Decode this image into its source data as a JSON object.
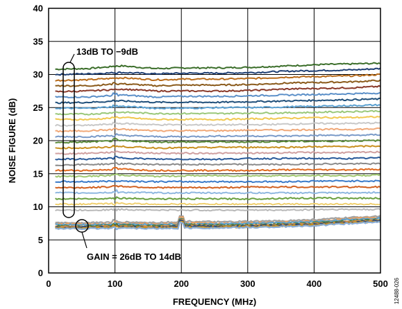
{
  "chart_data": {
    "type": "line",
    "xlabel": "FREQUENCY (MHz)",
    "ylabel": "NOISE FIGURE (dB)",
    "xlim": [
      0,
      500
    ],
    "ylim": [
      0,
      40
    ],
    "xticks": [
      0,
      100,
      200,
      300,
      400,
      500
    ],
    "yticks": [
      0,
      5,
      10,
      15,
      20,
      25,
      30,
      35,
      40
    ],
    "grid": true,
    "x": [
      10,
      60,
      110,
      160,
      210,
      260,
      310,
      360,
      410,
      460,
      500
    ],
    "annotations": [
      {
        "text": "13dB TO −9dB"
      },
      {
        "text": "GAIN = 26dB TO 14dB"
      }
    ],
    "figure_id": "12488-026",
    "series_colors": [
      "#3b6e2a",
      "#1f3f73",
      "#b86b1a",
      "#8a5a1a",
      "#8a3a2a",
      "#5b8fc8",
      "#1f4f7a",
      "#5aa0d0",
      "#9ac87a",
      "#f0c850",
      "#c8c8c8",
      "#f0a878",
      "#7a9ac8",
      "#5a8a3a",
      "#c89020",
      "#d0a0a0",
      "#2a5a9a",
      "#8a8a8a",
      "#e06a20",
      "#a0c870",
      "#3a7ac8",
      "#d06020",
      "#90b8e0",
      "#6aa040",
      "#f0d070",
      "#b8b8b8"
    ],
    "series": [
      {
        "values": [
          30.8,
          30.9,
          31.3,
          30.9,
          31.0,
          31.0,
          31.1,
          31.3,
          31.5,
          31.6,
          31.7
        ]
      },
      {
        "values": [
          30.0,
          30.1,
          30.3,
          30.1,
          30.2,
          30.2,
          30.3,
          30.5,
          30.6,
          30.7,
          30.9
        ]
      },
      {
        "values": [
          29.1,
          29.2,
          29.5,
          29.2,
          29.3,
          29.3,
          29.4,
          29.6,
          29.7,
          29.8,
          30.0
        ]
      },
      {
        "values": [
          28.3,
          28.3,
          28.6,
          28.3,
          28.4,
          28.4,
          28.5,
          28.7,
          28.8,
          28.9,
          29.1
        ]
      },
      {
        "values": [
          27.4,
          27.5,
          27.8,
          27.5,
          27.5,
          27.5,
          27.6,
          27.8,
          27.9,
          28.0,
          28.2
        ]
      },
      {
        "values": [
          26.6,
          26.6,
          26.9,
          26.6,
          26.7,
          26.7,
          26.8,
          26.9,
          27.0,
          27.1,
          27.2
        ]
      },
      {
        "values": [
          25.7,
          25.8,
          26.0,
          25.8,
          25.8,
          25.8,
          25.9,
          26.0,
          26.1,
          26.2,
          26.3
        ]
      },
      {
        "values": [
          24.9,
          24.9,
          25.2,
          24.9,
          24.9,
          25.0,
          25.0,
          25.1,
          25.2,
          25.3,
          25.4
        ]
      },
      {
        "values": [
          24.0,
          24.0,
          24.3,
          24.1,
          24.1,
          24.1,
          24.2,
          24.2,
          24.3,
          24.4,
          24.5
        ]
      },
      {
        "values": [
          23.2,
          23.2,
          23.5,
          23.2,
          23.2,
          23.2,
          23.3,
          23.4,
          23.5,
          23.5,
          23.6
        ]
      },
      {
        "values": [
          22.3,
          22.3,
          22.6,
          22.4,
          22.4,
          22.4,
          22.4,
          22.5,
          22.6,
          22.6,
          22.7
        ]
      },
      {
        "values": [
          21.4,
          21.5,
          21.7,
          21.5,
          21.5,
          21.5,
          21.6,
          21.6,
          21.7,
          21.7,
          21.8
        ]
      },
      {
        "values": [
          20.6,
          20.6,
          20.8,
          20.6,
          20.6,
          20.7,
          20.7,
          20.7,
          20.8,
          20.8,
          20.9
        ]
      },
      {
        "values": [
          19.7,
          19.8,
          20.0,
          19.8,
          19.8,
          19.8,
          19.8,
          19.9,
          19.9,
          20.0,
          20.0
        ]
      },
      {
        "values": [
          18.9,
          18.9,
          19.1,
          18.9,
          18.9,
          19.0,
          19.0,
          19.0,
          19.1,
          19.1,
          19.2
        ]
      },
      {
        "values": [
          18.0,
          18.1,
          18.3,
          18.1,
          18.1,
          18.1,
          18.1,
          18.2,
          18.2,
          18.2,
          18.3
        ]
      },
      {
        "values": [
          17.2,
          17.2,
          17.4,
          17.2,
          17.2,
          17.2,
          17.3,
          17.3,
          17.3,
          17.3,
          17.4
        ]
      },
      {
        "values": [
          16.3,
          16.4,
          16.5,
          16.4,
          16.4,
          16.4,
          16.4,
          16.4,
          16.5,
          16.5,
          16.5
        ]
      },
      {
        "values": [
          15.5,
          15.5,
          15.7,
          15.5,
          15.5,
          15.5,
          15.5,
          15.6,
          15.6,
          15.6,
          15.7
        ]
      },
      {
        "values": [
          14.6,
          14.6,
          14.8,
          14.6,
          14.7,
          14.7,
          14.7,
          14.7,
          14.7,
          14.7,
          14.8
        ]
      },
      {
        "values": [
          13.8,
          13.8,
          13.9,
          13.8,
          13.8,
          13.8,
          13.8,
          13.8,
          13.9,
          13.9,
          13.9
        ]
      },
      {
        "values": [
          12.9,
          12.9,
          13.1,
          12.9,
          12.9,
          12.9,
          13.0,
          13.0,
          13.0,
          13.0,
          13.0
        ]
      },
      {
        "values": [
          12.1,
          12.1,
          12.2,
          12.1,
          12.1,
          12.1,
          12.1,
          12.1,
          12.1,
          12.1,
          12.2
        ]
      },
      {
        "values": [
          11.2,
          11.2,
          11.3,
          11.2,
          11.2,
          11.2,
          11.2,
          11.3,
          11.3,
          11.3,
          11.3
        ]
      },
      {
        "values": [
          10.4,
          10.4,
          10.5,
          10.4,
          10.4,
          10.4,
          10.4,
          10.4,
          10.4,
          10.4,
          10.4
        ]
      },
      {
        "values": [
          9.5,
          9.5,
          9.6,
          9.5,
          9.5,
          9.5,
          9.5,
          9.5,
          9.6,
          9.6,
          9.6
        ]
      },
      {
        "values": [
          7.6,
          7.6,
          7.7,
          7.6,
          7.8,
          7.7,
          7.8,
          7.9,
          8.1,
          8.4,
          8.6
        ]
      },
      {
        "values": [
          7.4,
          7.4,
          7.5,
          7.4,
          7.6,
          7.5,
          7.6,
          7.7,
          7.9,
          8.2,
          8.4
        ]
      },
      {
        "values": [
          7.3,
          7.3,
          7.4,
          7.3,
          7.4,
          7.4,
          7.5,
          7.6,
          7.8,
          8.1,
          8.3
        ]
      },
      {
        "values": [
          7.1,
          7.1,
          7.2,
          7.1,
          7.3,
          7.2,
          7.3,
          7.4,
          7.6,
          7.9,
          8.1
        ]
      },
      {
        "values": [
          7.0,
          7.0,
          7.1,
          7.0,
          7.2,
          7.1,
          7.2,
          7.3,
          7.5,
          7.8,
          8.0
        ]
      },
      {
        "values": [
          6.9,
          6.9,
          7.0,
          6.9,
          7.1,
          7.0,
          7.1,
          7.2,
          7.4,
          7.7,
          7.9
        ]
      },
      {
        "values": [
          6.8,
          6.8,
          6.9,
          6.8,
          6.9,
          6.9,
          7.0,
          7.1,
          7.3,
          7.6,
          7.8
        ]
      },
      {
        "values": [
          6.7,
          6.7,
          6.8,
          6.7,
          6.8,
          6.8,
          6.9,
          7.0,
          7.2,
          7.5,
          7.7
        ]
      }
    ],
    "low_series_colors": [
      "#a0a0a0",
      "#e8a060",
      "#5aa0d0",
      "#4a7a3a",
      "#d09050",
      "#2a4a7a",
      "#c89020",
      "#8aaed8"
    ]
  }
}
